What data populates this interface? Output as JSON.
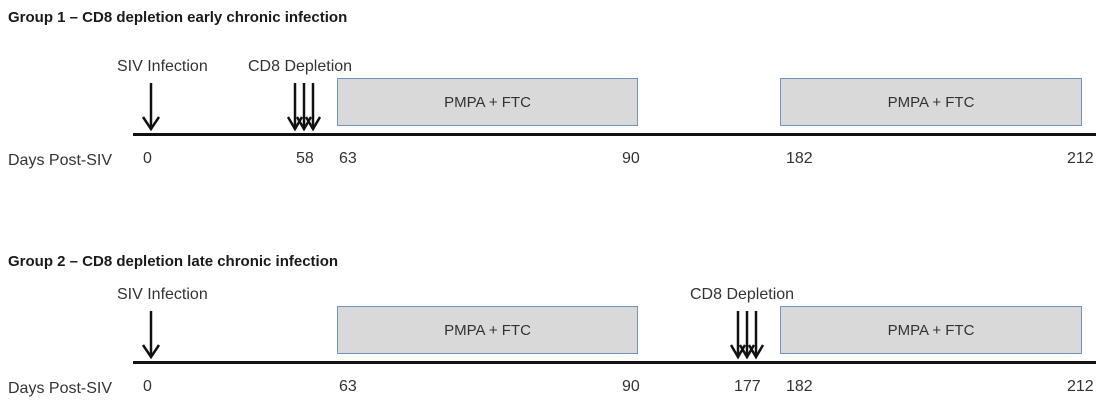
{
  "group1": {
    "title": "Group 1 – CD8 depletion early chronic infection",
    "infection_label": "SIV Infection",
    "depletion_label": "CD8 Depletion",
    "day_label": "Days Post-SIV",
    "boxes": [
      "PMPA + FTC",
      "PMPA + FTC"
    ],
    "ticks": [
      "0",
      "58",
      "63",
      "90",
      "182",
      "212"
    ]
  },
  "group2": {
    "title": "Group 2 – CD8 depletion late chronic infection",
    "infection_label": "SIV Infection",
    "depletion_label": "CD8 Depletion",
    "day_label": "Days Post-SIV",
    "boxes": [
      "PMPA + FTC",
      "PMPA + FTC"
    ],
    "ticks": [
      "0",
      "63",
      "90",
      "177",
      "182",
      "212"
    ]
  }
}
